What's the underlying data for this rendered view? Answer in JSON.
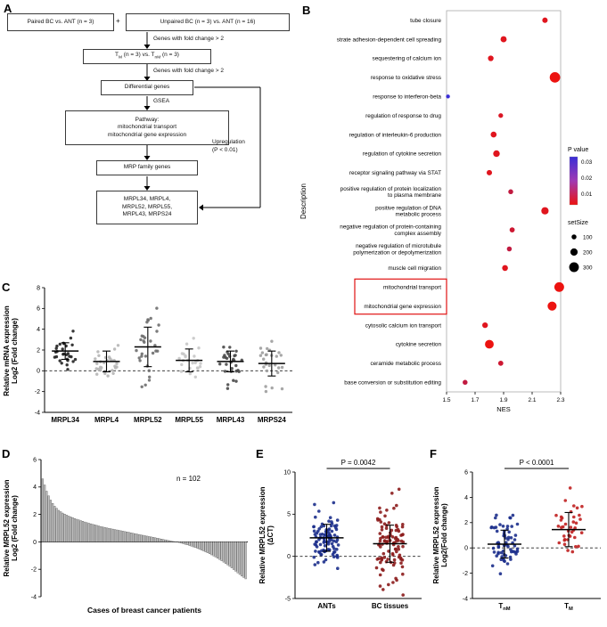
{
  "figure": {
    "bg": "#ffffff"
  },
  "panels": {
    "A": {
      "letter": "A",
      "box_paired": "Paired BC vs. ANT (n = 3)",
      "plus": "+",
      "box_unpaired": "Unpaired BC (n = 3) vs. ANT (n = 16)",
      "arrow1_label": "Genes with fold change > 2",
      "box_tm": {
        "t1": "T",
        "s1": "M",
        "mid": " (n = 3) vs. T",
        "s2": "nM",
        "end": " (n = 3)"
      },
      "arrow2_label": "Genes with fold change > 2",
      "box_diff": "Differential genes",
      "arrow3_label": "GSEA",
      "pathway_lines": [
        "Pathway:",
        "mitochondrial transport",
        "mitochondrial gene expression"
      ],
      "box_mrp": "MRP family genes",
      "genes_lines": [
        "MRPL34, MRPL4,",
        "MRPL52, MRPL55,",
        "MRPL43, MRPS24"
      ],
      "side_label_lines": [
        "Upregulation",
        "(P < 0.01)"
      ]
    },
    "B": {
      "letter": "B"
    },
    "C": {
      "letter": "C"
    },
    "D": {
      "letter": "D"
    },
    "E": {
      "letter": "E"
    },
    "F": {
      "letter": "F"
    }
  },
  "chart_data": [
    {
      "id": "B",
      "type": "scatter",
      "xlabel": "NES",
      "ylabel": "Description",
      "xlim": [
        1.5,
        2.3
      ],
      "xticks": [
        1.5,
        1.7,
        1.9,
        2.1,
        2.3
      ],
      "legend": {
        "p_title": "P value",
        "p_ticks": [
          0.03,
          0.02,
          0.01
        ],
        "size_title": "setSize",
        "sizes": [
          100,
          200,
          300
        ]
      },
      "highlight_rows": [
        14,
        15
      ],
      "rows": [
        {
          "label": [
            "tube closure"
          ],
          "nes": 2.19,
          "p": 0.005,
          "setSize": 120
        },
        {
          "label": [
            "strate adhesion-dependent cell spreading"
          ],
          "nes": 1.9,
          "p": 0.005,
          "setSize": 150
        },
        {
          "label": [
            "sequestering of calcium ion"
          ],
          "nes": 1.81,
          "p": 0.005,
          "setSize": 130
        },
        {
          "label": [
            "response to oxidative stress"
          ],
          "nes": 2.26,
          "p": 0.003,
          "setSize": 330
        },
        {
          "label": [
            "response to interferon-beta"
          ],
          "nes": 1.51,
          "p": 0.033,
          "setSize": 60
        },
        {
          "label": [
            "regulation of response to drug"
          ],
          "nes": 1.88,
          "p": 0.006,
          "setSize": 90
        },
        {
          "label": [
            "regulation of interleukin-6 production"
          ],
          "nes": 1.83,
          "p": 0.005,
          "setSize": 140
        },
        {
          "label": [
            "regulation of cytokine secretion"
          ],
          "nes": 1.85,
          "p": 0.005,
          "setSize": 170
        },
        {
          "label": [
            "receptor signaling pathway via STAT"
          ],
          "nes": 1.8,
          "p": 0.005,
          "setSize": 120
        },
        {
          "label": [
            "positive regulation of protein localization",
            "to plasma membrane"
          ],
          "nes": 1.95,
          "p": 0.01,
          "setSize": 100
        },
        {
          "label": [
            "positive regulation of DNA",
            "metabolic process"
          ],
          "nes": 2.19,
          "p": 0.005,
          "setSize": 200
        },
        {
          "label": [
            "negative regulation of protein-containing",
            "complex assembly"
          ],
          "nes": 1.96,
          "p": 0.008,
          "setSize": 110
        },
        {
          "label": [
            "negative regulation of microtubule",
            "polymerization or depolymerization"
          ],
          "nes": 1.94,
          "p": 0.01,
          "setSize": 100
        },
        {
          "label": [
            "muscle cell migration"
          ],
          "nes": 1.91,
          "p": 0.005,
          "setSize": 140
        },
        {
          "label": [
            "mitochondrial transport"
          ],
          "nes": 2.29,
          "p": 0.003,
          "setSize": 300
        },
        {
          "label": [
            "mitochondrial gene expression"
          ],
          "nes": 2.24,
          "p": 0.003,
          "setSize": 270
        },
        {
          "label": [
            "cytosolic calcium ion transport"
          ],
          "nes": 1.77,
          "p": 0.005,
          "setSize": 130
        },
        {
          "label": [
            "cytokine secretion"
          ],
          "nes": 1.8,
          "p": 0.003,
          "setSize": 260
        },
        {
          "label": [
            "ceramide metabolic process"
          ],
          "nes": 1.88,
          "p": 0.008,
          "setSize": 110
        },
        {
          "label": [
            "base conversion or substitution editing"
          ],
          "nes": 1.63,
          "p": 0.01,
          "setSize": 100
        }
      ]
    },
    {
      "id": "C",
      "type": "scatter",
      "ylabel_lines": [
        "Relative mRNA expression",
        "Log2 (Fold change)"
      ],
      "ylim": [
        -4,
        8
      ],
      "yticks": [
        -4,
        -2,
        0,
        2,
        4,
        6,
        8
      ],
      "zero_dash": true,
      "groups": [
        {
          "label": [
            {
              "t": "MRPL34"
            }
          ],
          "n": 28,
          "mean": 1.9,
          "sd": 0.8,
          "color": "#222222"
        },
        {
          "label": [
            {
              "t": "MRPL4"
            }
          ],
          "n": 28,
          "mean": 0.9,
          "sd": 1.0,
          "color": "#b5b5b5"
        },
        {
          "label": [
            {
              "t": "MRPL52"
            }
          ],
          "n": 30,
          "mean": 2.3,
          "sd": 1.9,
          "color": "#6e6e6e"
        },
        {
          "label": [
            {
              "t": "MRPL55"
            }
          ],
          "n": 24,
          "mean": 1.0,
          "sd": 1.1,
          "color": "#c7c7c7"
        },
        {
          "label": [
            {
              "t": "MRPL43"
            }
          ],
          "n": 30,
          "mean": 0.9,
          "sd": 1.0,
          "color": "#484848"
        },
        {
          "label": [
            {
              "t": "MRPS24"
            }
          ],
          "n": 26,
          "mean": 0.7,
          "sd": 1.2,
          "color": "#9d9d9d"
        }
      ]
    },
    {
      "id": "D",
      "type": "bar",
      "annotation": "n = 102",
      "xlabel": "Cases of breast cancer patients",
      "ylabel_lines": [
        "Relative MRPL52 expression",
        "Log2 (Fold change)"
      ],
      "ylim": [
        -4,
        6
      ],
      "yticks": [
        -4,
        -2,
        0,
        2,
        4,
        6
      ],
      "values": [
        4.6,
        4.15,
        3.7,
        3.35,
        3.05,
        2.8,
        2.6,
        2.45,
        2.3,
        2.2,
        2.1,
        2.02,
        1.95,
        1.88,
        1.82,
        1.76,
        1.7,
        1.65,
        1.6,
        1.55,
        1.5,
        1.45,
        1.4,
        1.36,
        1.32,
        1.28,
        1.24,
        1.2,
        1.16,
        1.12,
        1.08,
        1.05,
        1.02,
        0.99,
        0.96,
        0.93,
        0.9,
        0.87,
        0.84,
        0.81,
        0.78,
        0.75,
        0.72,
        0.69,
        0.66,
        0.63,
        0.6,
        0.57,
        0.54,
        0.51,
        0.48,
        0.45,
        0.42,
        0.39,
        0.36,
        0.33,
        0.3,
        0.27,
        0.24,
        0.21,
        0.18,
        0.15,
        0.12,
        0.09,
        0.06,
        0.03,
        0.0,
        -0.03,
        -0.06,
        -0.1,
        -0.14,
        -0.18,
        -0.22,
        -0.27,
        -0.32,
        -0.37,
        -0.42,
        -0.48,
        -0.54,
        -0.6,
        -0.66,
        -0.73,
        -0.8,
        -0.87,
        -0.95,
        -1.03,
        -1.11,
        -1.2,
        -1.29,
        -1.38,
        -1.48,
        -1.58,
        -1.68,
        -1.79,
        -1.9,
        -2.02,
        -2.14,
        -2.26,
        -2.38,
        -2.5,
        -2.6,
        -2.7
      ]
    },
    {
      "id": "E",
      "type": "scatter",
      "p_label": "P = 0.0042",
      "ylabel_lines": [
        "Relative MRPL52 expression",
        "(ΔCT)"
      ],
      "ylim": [
        -5,
        10
      ],
      "yticks": [
        -5,
        0,
        5,
        10
      ],
      "zero_dash": true,
      "groups": [
        {
          "label": [
            {
              "t": "ANTs"
            }
          ],
          "n": 100,
          "mean": 2.2,
          "sd": 1.6,
          "color": "#1c2f8c"
        },
        {
          "label": [
            {
              "t": "BC tissues"
            }
          ],
          "n": 102,
          "mean": 1.5,
          "sd": 2.2,
          "color": "#8c1c1c"
        }
      ]
    },
    {
      "id": "F",
      "type": "scatter",
      "p_label": "P < 0.0001",
      "ylabel_lines": [
        "Relative MRPL52 expression",
        "Log2(Fold change)"
      ],
      "ylim": [
        -4,
        6
      ],
      "yticks": [
        -4,
        -2,
        0,
        2,
        4,
        6
      ],
      "zero_dash": true,
      "groups": [
        {
          "label": [
            {
              "t": "T"
            },
            {
              "t": "nM",
              "sub": true
            }
          ],
          "n": 65,
          "mean": 0.3,
          "sd": 1.1,
          "color": "#1c2f8c"
        },
        {
          "label": [
            {
              "t": "T"
            },
            {
              "t": "M",
              "sub": true
            }
          ],
          "n": 38,
          "mean": 1.45,
          "sd": 1.35,
          "color": "#c02020"
        }
      ]
    }
  ]
}
